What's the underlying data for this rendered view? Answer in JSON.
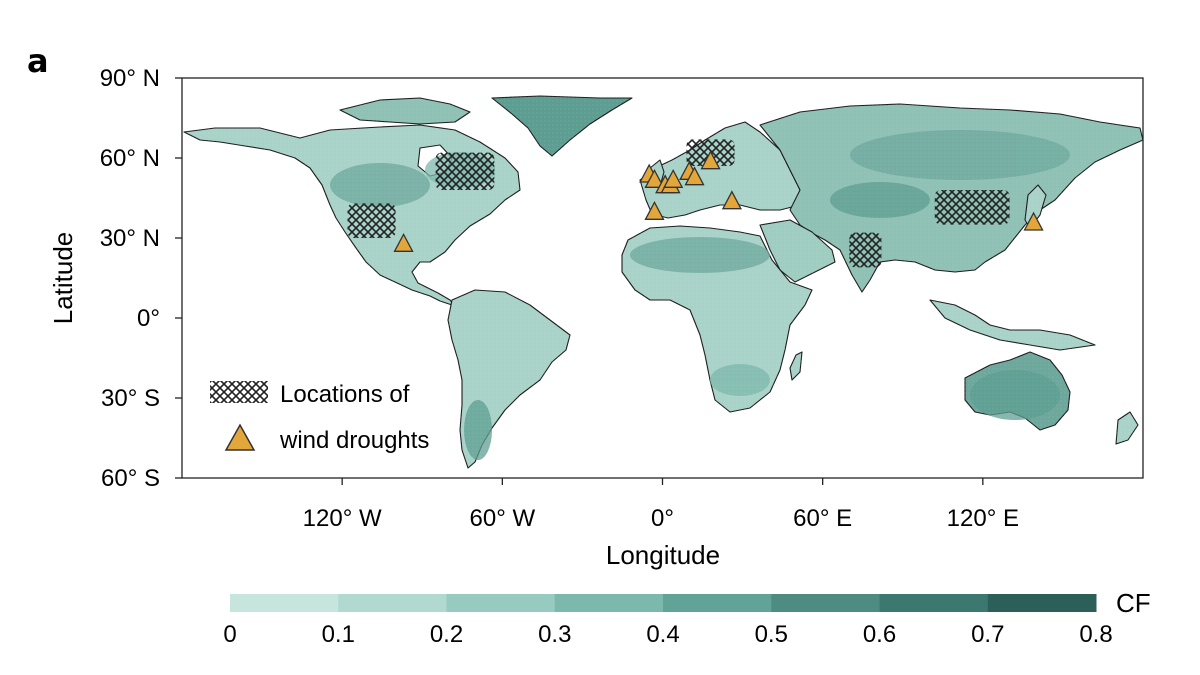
{
  "panel_label": "a",
  "map": {
    "ylabel": "Latitude",
    "xlabel": "Longitude",
    "lat_ticks": [
      {
        "value": 90,
        "label": "90° N"
      },
      {
        "value": 60,
        "label": "60° N"
      },
      {
        "value": 30,
        "label": "30° N"
      },
      {
        "value": 0,
        "label": "0°"
      },
      {
        "value": -30,
        "label": "30° S"
      },
      {
        "value": -60,
        "label": "60° S"
      }
    ],
    "lon_ticks": [
      {
        "value": -120,
        "label": "120° W"
      },
      {
        "value": -60,
        "label": "60° W"
      },
      {
        "value": 0,
        "label": "0°"
      },
      {
        "value": 60,
        "label": "60° E"
      },
      {
        "value": 120,
        "label": "120° E"
      }
    ],
    "lon_range": [
      -180,
      180
    ],
    "lat_range": [
      -60,
      90
    ],
    "legend": {
      "hatch_label": "Locations of",
      "triangle_label": "wind droughts"
    },
    "colors": {
      "land_base": "#b8ddd3",
      "ocean": "#ffffff",
      "hatch": "#222222",
      "triangle_fill": "#e3a63a",
      "triangle_stroke": "#333333"
    },
    "drought_regions": [
      {
        "name": "Western US",
        "lon": [
          -118,
          -100
        ],
        "lat": [
          30,
          43
        ]
      },
      {
        "name": "Eastern Canada",
        "lon": [
          -85,
          -63
        ],
        "lat": [
          48,
          62
        ]
      },
      {
        "name": "Scandinavia",
        "lon": [
          9,
          27
        ],
        "lat": [
          57,
          67
        ]
      },
      {
        "name": "India",
        "lon": [
          70,
          82
        ],
        "lat": [
          19,
          32
        ]
      },
      {
        "name": "Eastern China",
        "lon": [
          102,
          130
        ],
        "lat": [
          35,
          48
        ]
      }
    ],
    "wind_drought_sites": [
      {
        "lon": -97,
        "lat": 28
      },
      {
        "lon": -5,
        "lat": 54
      },
      {
        "lon": -3,
        "lat": 52
      },
      {
        "lon": 1,
        "lat": 50
      },
      {
        "lon": 3,
        "lat": 50
      },
      {
        "lon": 4,
        "lat": 52
      },
      {
        "lon": 10,
        "lat": 55
      },
      {
        "lon": 12,
        "lat": 53
      },
      {
        "lon": 18,
        "lat": 59
      },
      {
        "lon": -3,
        "lat": 40
      },
      {
        "lon": 26,
        "lat": 44
      },
      {
        "lon": 139,
        "lat": 36
      }
    ]
  },
  "colorbar": {
    "label": "CF",
    "ticks": [
      "0",
      "0.1",
      "0.2",
      "0.3",
      "0.4",
      "0.5",
      "0.6",
      "0.7",
      "0.8"
    ],
    "colors": [
      "#d6efe7",
      "#c6e6dd",
      "#b1d9d0",
      "#97cbc0",
      "#7cb8ac",
      "#62a397",
      "#4e8c82",
      "#3d7870",
      "#2c5f58"
    ]
  }
}
